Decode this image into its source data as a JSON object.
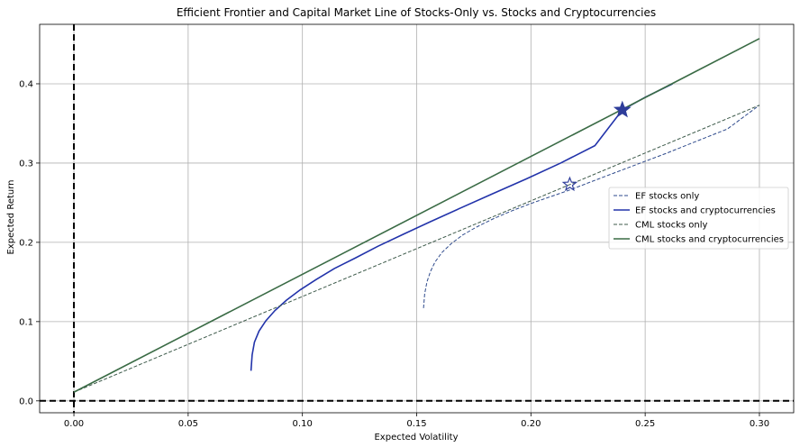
{
  "chart_data": {
    "type": "line",
    "title": "Efficient Frontier and Capital Market Line of Stocks-Only vs. Stocks and Cryptocurrencies",
    "xlabel": "Expected Volatility",
    "ylabel": "Expected Return",
    "xlim": [
      -0.015,
      0.315
    ],
    "ylim": [
      -0.015,
      0.475
    ],
    "xticks": [
      0.0,
      0.05,
      0.1,
      0.15,
      0.2,
      0.25,
      0.3
    ],
    "xtick_labels": [
      "0.00",
      "0.05",
      "0.10",
      "0.15",
      "0.20",
      "0.25",
      "0.30"
    ],
    "yticks": [
      0.0,
      0.1,
      0.2,
      0.3,
      0.4
    ],
    "ytick_labels": [
      "0.0",
      "0.1",
      "0.2",
      "0.3",
      "0.4"
    ],
    "grid": true,
    "legend_position": "right",
    "reference_lines": [
      {
        "orientation": "vertical",
        "value": 0.0,
        "style": "dashed",
        "color": "#000000"
      },
      {
        "orientation": "horizontal",
        "value": 0.0,
        "style": "dashed",
        "color": "#000000"
      }
    ],
    "series": [
      {
        "name": "EF stocks only",
        "style": "dashed",
        "color": "#2e4a8c",
        "x": [
          0.153,
          0.1535,
          0.1545,
          0.156,
          0.158,
          0.161,
          0.165,
          0.17,
          0.176,
          0.183,
          0.191,
          0.2,
          0.209,
          0.217,
          0.226,
          0.236,
          0.247,
          0.259,
          0.272,
          0.286,
          0.3
        ],
        "y": [
          0.117,
          0.135,
          0.15,
          0.163,
          0.175,
          0.187,
          0.198,
          0.209,
          0.219,
          0.229,
          0.239,
          0.249,
          0.258,
          0.266,
          0.276,
          0.287,
          0.299,
          0.312,
          0.327,
          0.343,
          0.373
        ]
      },
      {
        "name": "EF stocks and cryptocurrencies",
        "style": "solid",
        "color": "#2233aa",
        "x": [
          0.0775,
          0.078,
          0.079,
          0.081,
          0.084,
          0.088,
          0.093,
          0.099,
          0.106,
          0.114,
          0.123,
          0.133,
          0.144,
          0.156,
          0.169,
          0.183,
          0.198,
          0.213,
          0.228,
          0.24,
          0.25,
          0.262
        ],
        "y": [
          0.038,
          0.058,
          0.074,
          0.088,
          0.101,
          0.114,
          0.127,
          0.14,
          0.153,
          0.167,
          0.18,
          0.195,
          0.21,
          0.226,
          0.243,
          0.261,
          0.28,
          0.3,
          0.322,
          0.367,
          0.383,
          0.4
        ]
      },
      {
        "name": "CML stocks only",
        "style": "dashed",
        "color": "#3d5a4a",
        "x": [
          0.0,
          0.3
        ],
        "y": [
          0.011,
          0.373
        ]
      },
      {
        "name": "CML stocks and cryptocurrencies",
        "style": "solid",
        "color": "#3a6b45",
        "x": [
          0.0,
          0.3
        ],
        "y": [
          0.011,
          0.457
        ]
      }
    ],
    "markers": [
      {
        "name": "tangency stocks only",
        "x": 0.217,
        "y": 0.273,
        "shape": "star",
        "filled": false,
        "color": "#2e3d9a"
      },
      {
        "name": "tangency stocks and cryptocurrencies",
        "x": 0.24,
        "y": 0.367,
        "shape": "star",
        "filled": true,
        "color": "#2e3d9a"
      }
    ]
  }
}
